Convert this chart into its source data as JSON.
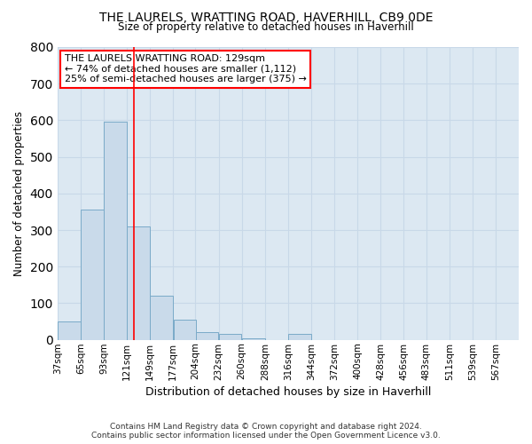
{
  "title": "THE LAURELS, WRATTING ROAD, HAVERHILL, CB9 0DE",
  "subtitle": "Size of property relative to detached houses in Haverhill",
  "xlabel": "Distribution of detached houses by size in Haverhill",
  "ylabel": "Number of detached properties",
  "footnote1": "Contains HM Land Registry data © Crown copyright and database right 2024.",
  "footnote2": "Contains public sector information licensed under the Open Government Licence v3.0.",
  "bar_color": "#c9daea",
  "bar_edge_color": "#7aaac8",
  "grid_color": "#c8d8e8",
  "bg_color": "#dce8f2",
  "red_line_x": 129,
  "annotation_line1": "THE LAURELS WRATTING ROAD: 129sqm",
  "annotation_line2": "← 74% of detached houses are smaller (1,112)",
  "annotation_line3": "25% of semi-detached houses are larger (375) →",
  "bins": [
    37,
    65,
    93,
    121,
    149,
    177,
    204,
    232,
    260,
    288,
    316,
    344,
    372,
    400,
    428,
    456,
    483,
    511,
    539,
    567,
    595
  ],
  "counts": [
    50,
    355,
    595,
    310,
    120,
    55,
    20,
    15,
    5,
    0,
    15,
    0,
    0,
    0,
    0,
    0,
    0,
    0,
    0,
    0
  ],
  "ylim": [
    0,
    800
  ],
  "yticks": [
    0,
    100,
    200,
    300,
    400,
    500,
    600,
    700,
    800
  ]
}
